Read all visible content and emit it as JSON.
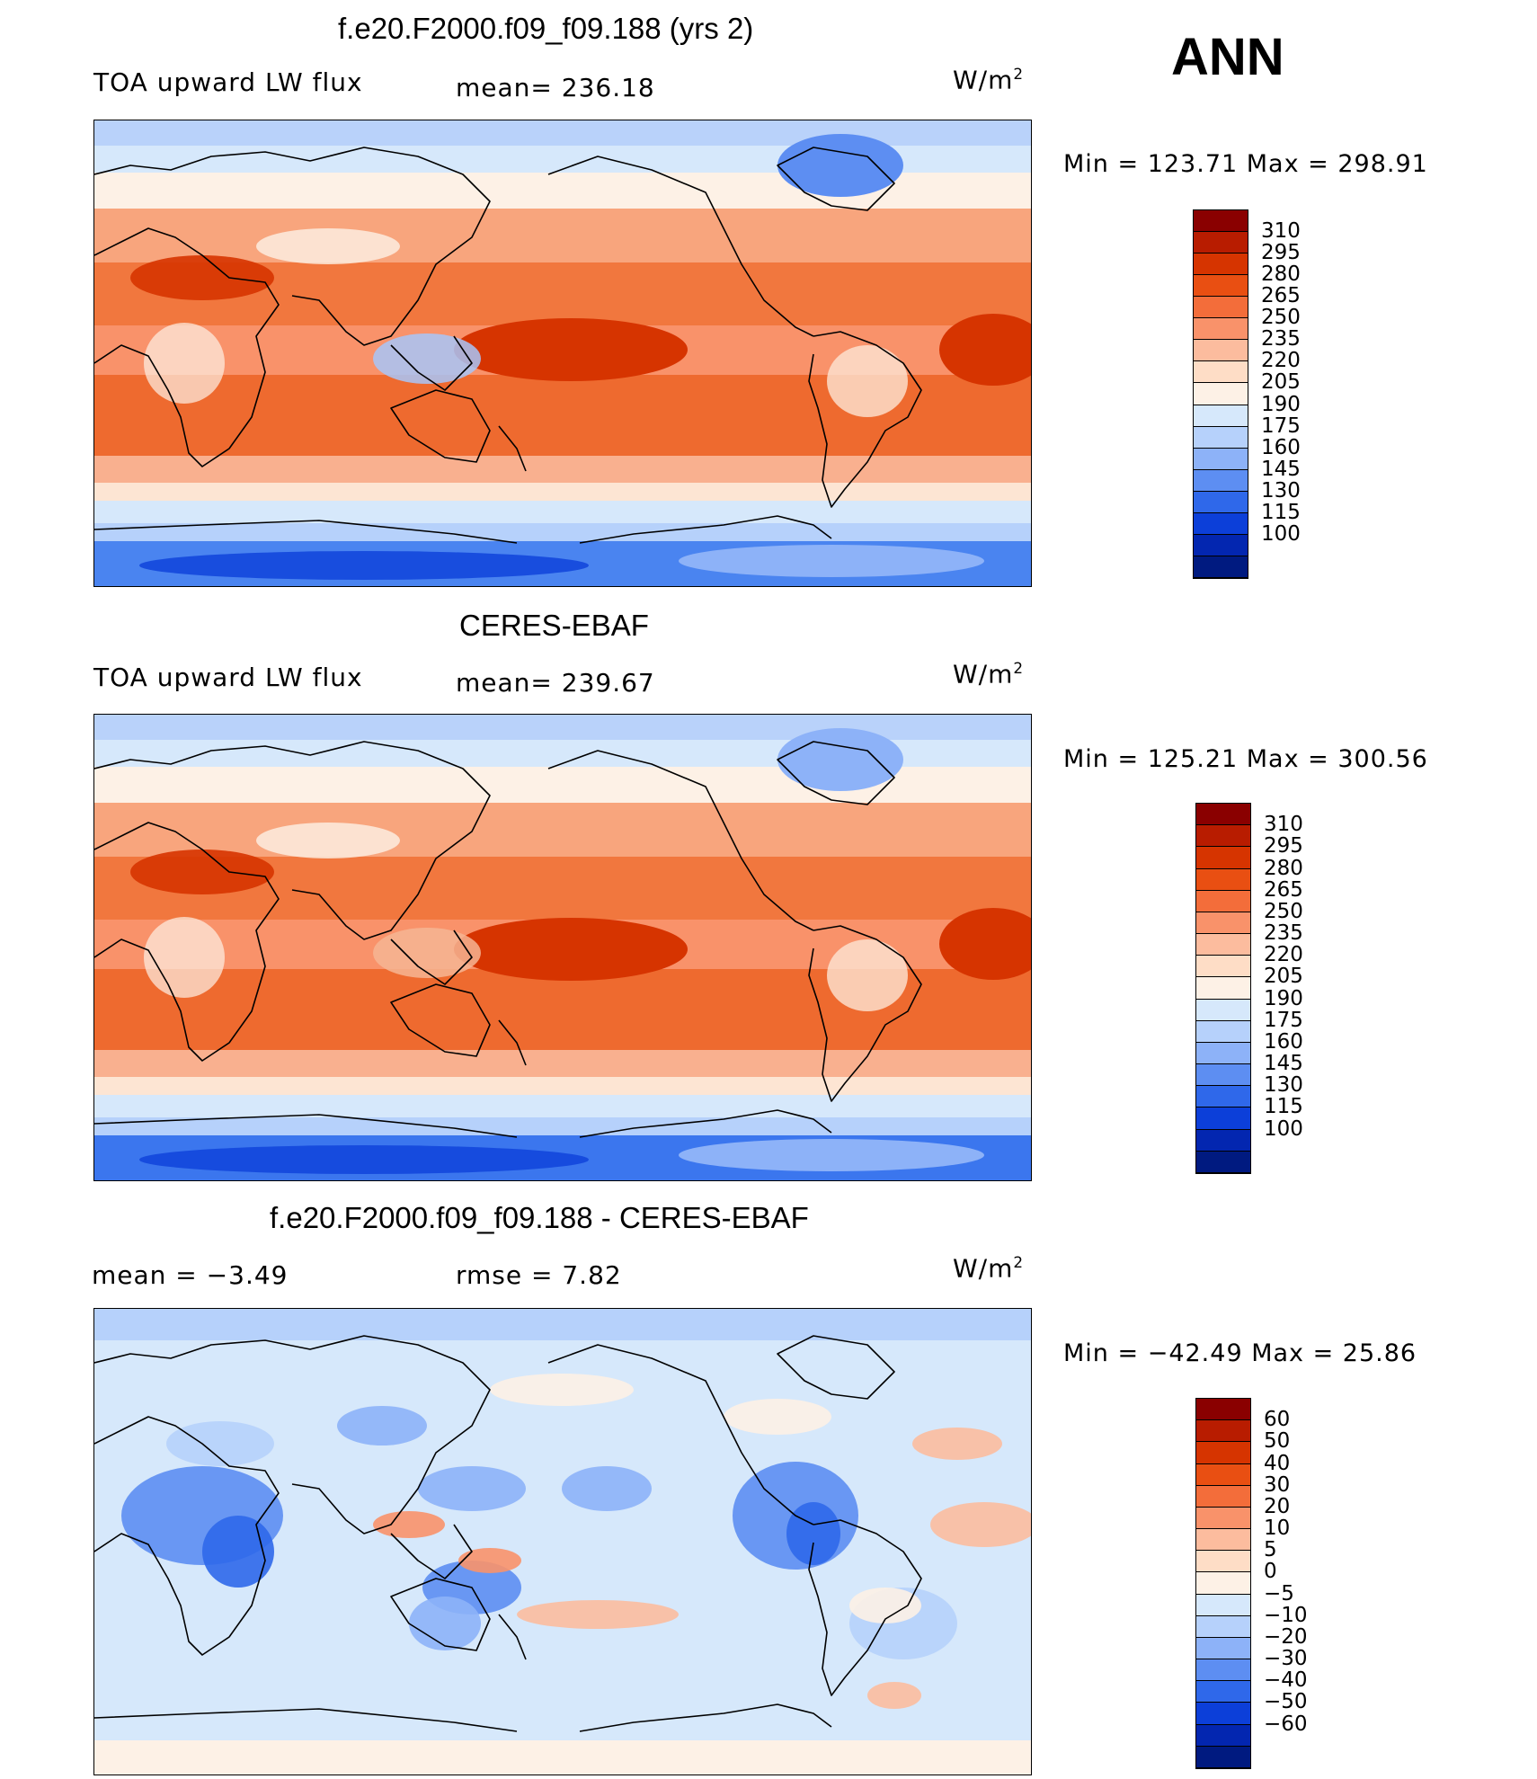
{
  "season": "ANN",
  "panels": [
    {
      "title": "f.e20.F2000.f09_f09.188 (yrs 2)",
      "left_label": "TOA upward LW flux",
      "center_label": "mean=  236.18",
      "units": "W/m",
      "units_sup": "2",
      "minmax": "Min  =  123.71  Max  =  298.91",
      "colorbar": {
        "levels": [
          "310",
          "295",
          "280",
          "265",
          "250",
          "235",
          "220",
          "205",
          "190",
          "175",
          "160",
          "145",
          "130",
          "115",
          "100"
        ],
        "colors": [
          "#8a0000",
          "#b81c00",
          "#d63400",
          "#e94f12",
          "#f36d3a",
          "#f9926a",
          "#fcbc9e",
          "#feddc6",
          "#fdf1e6",
          "#d6e8fb",
          "#b6d1fb",
          "#8db2f8",
          "#5d8ef2",
          "#2f68ea",
          "#0c3fd9",
          "#0326b0",
          "#001a80"
        ]
      },
      "map_kind": "model"
    },
    {
      "title": "CERES-EBAF",
      "left_label": "TOA upward LW flux",
      "center_label": "mean=  239.67",
      "units": "W/m",
      "units_sup": "2",
      "minmax": "Min  =  125.21  Max  =  300.56",
      "colorbar": {
        "levels": [
          "310",
          "295",
          "280",
          "265",
          "250",
          "235",
          "220",
          "205",
          "190",
          "175",
          "160",
          "145",
          "130",
          "115",
          "100"
        ],
        "colors": [
          "#8a0000",
          "#b81c00",
          "#d63400",
          "#e94f12",
          "#f36d3a",
          "#f9926a",
          "#fcbc9e",
          "#feddc6",
          "#fdf1e6",
          "#d6e8fb",
          "#b6d1fb",
          "#8db2f8",
          "#5d8ef2",
          "#2f68ea",
          "#0c3fd9",
          "#0326b0",
          "#001a80"
        ]
      },
      "map_kind": "obs"
    },
    {
      "title": "f.e20.F2000.f09_f09.188 - CERES-EBAF",
      "left_label": "mean  =     −3.49",
      "center_label": "rmse  =      7.82",
      "units": "W/m",
      "units_sup": "2",
      "minmax": "Min  =  −42.49  Max  =    25.86",
      "colorbar": {
        "levels": [
          "60",
          "50",
          "40",
          "30",
          "20",
          "10",
          "5",
          "0",
          "−5",
          "−10",
          "−20",
          "−30",
          "−40",
          "−50",
          "−60"
        ],
        "colors": [
          "#8a0000",
          "#b81c00",
          "#d63400",
          "#e94f12",
          "#f36d3a",
          "#f9926a",
          "#fcbc9e",
          "#feddc6",
          "#fdf1e6",
          "#d6e8fb",
          "#b6d1fb",
          "#8db2f8",
          "#5d8ef2",
          "#2f68ea",
          "#0c3fd9",
          "#0326b0",
          "#001a80"
        ]
      },
      "map_kind": "diff"
    }
  ]
}
